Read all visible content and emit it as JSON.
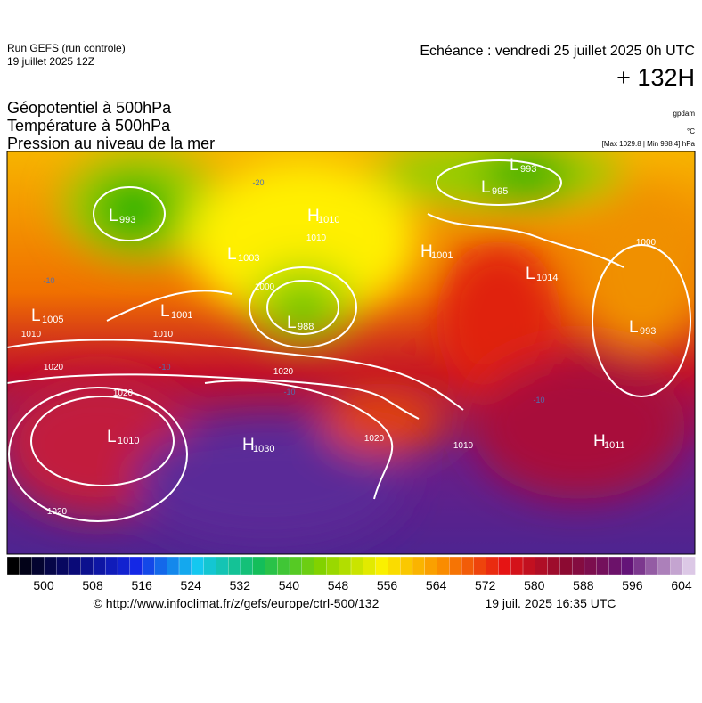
{
  "header": {
    "run": "Run GEFS (run controle)",
    "run_date": "19 juillet 2025 12Z",
    "echeance": "Echéance : vendredi 25 juillet 2025 0h UTC",
    "lead": "+ 132H",
    "fields": [
      "Géopotentiel à 500hPa",
      "Température à 500hPa",
      "Pression au niveau de la mer"
    ],
    "units": [
      "gpdam",
      "°C",
      "[Max 1029.8 | Min 988.4] hPa"
    ]
  },
  "map": {
    "pressure_centers": [
      {
        "type": "L",
        "value": "993"
      },
      {
        "type": "L",
        "value": "995"
      },
      {
        "type": "L",
        "value": "993"
      },
      {
        "type": "H",
        "value": "1010"
      },
      {
        "type": "L",
        "value": "1003"
      },
      {
        "type": "H",
        "value": "1001"
      },
      {
        "type": "L",
        "value": "1014"
      },
      {
        "type": "L",
        "value": "1005"
      },
      {
        "type": "L",
        "value": "1001"
      },
      {
        "type": "L",
        "value": "988"
      },
      {
        "type": "L",
        "value": "993"
      },
      {
        "type": "L",
        "value": "1010"
      },
      {
        "type": "H",
        "value": "1030"
      },
      {
        "type": "H",
        "value": "1011"
      }
    ],
    "isobar_labels": [
      "1000",
      "1010",
      "1010",
      "1020",
      "1020",
      "1020",
      "1020",
      "1020",
      "1010",
      "1000",
      "1010"
    ],
    "temperature_labels": [
      "-10",
      "-10",
      "-20",
      "-10",
      "-10"
    ]
  },
  "colorbar": {
    "ticks": [
      "500",
      "508",
      "516",
      "524",
      "532",
      "540",
      "548",
      "556",
      "564",
      "572",
      "580",
      "588",
      "596",
      "604"
    ]
  },
  "footer": {
    "url": "© http://www.infoclimat.fr/z/gefs/europe/ctrl-500/132",
    "issued": "19 juil. 2025 16:35 UTC"
  }
}
